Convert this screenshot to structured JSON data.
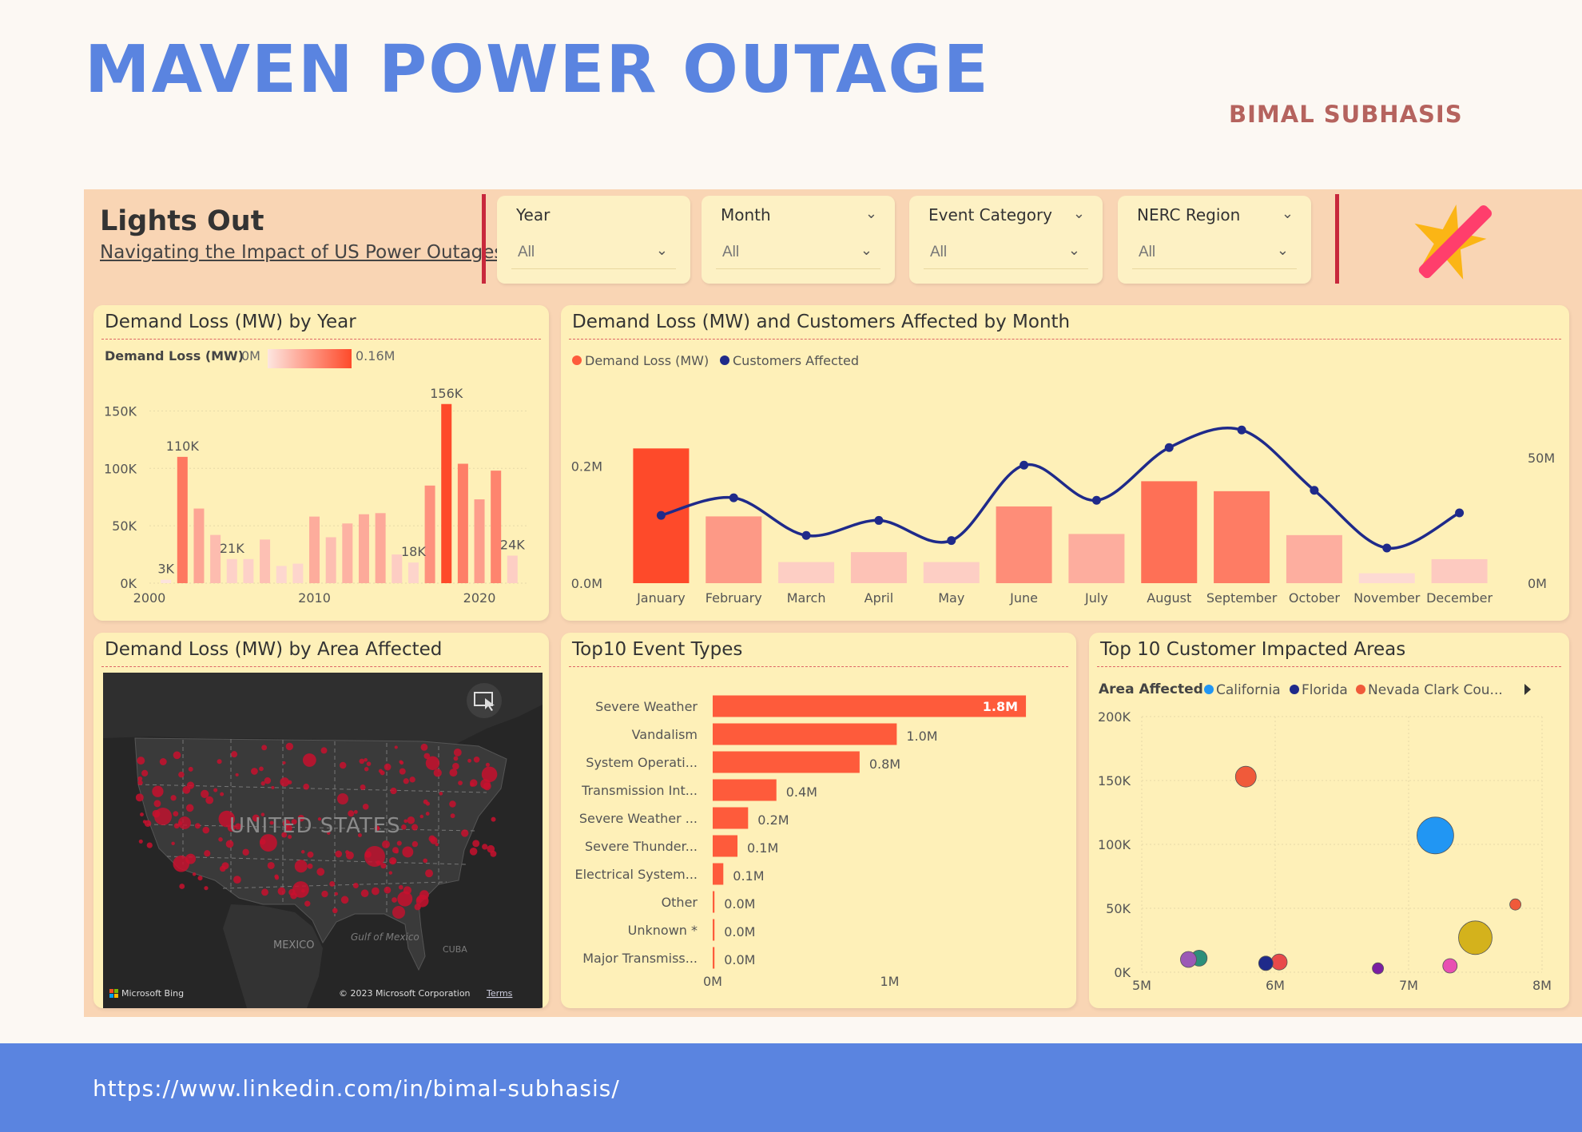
{
  "page": {
    "title": "MAVEN POWER OUTAGE",
    "author": "BIMAL SUBHASIS",
    "footer_link": "https://www.linkedin.com/in/bimal-subhasis/"
  },
  "header": {
    "title": "Lights Out",
    "subtitle": "Navigating the Impact of US Power Outages"
  },
  "slicers": [
    {
      "label": "Year",
      "value": "All"
    },
    {
      "label": "Month",
      "value": "All"
    },
    {
      "label": "Event Category",
      "value": "All"
    },
    {
      "label": "NERC Region",
      "value": "All"
    }
  ],
  "colors": {
    "title_blue": "#5a84e0",
    "author_red": "#b5635e",
    "dash_bg": "#f9d5b4",
    "card_bg": "#fef0b8",
    "accent_red": "#fe5b3b",
    "line_navy": "#1f2a8a"
  },
  "chart_data": [
    {
      "id": "year",
      "type": "bar",
      "title": "Demand Loss (MW) by Year",
      "legend": {
        "label": "Demand Loss (MW)",
        "min_label": "0M",
        "max_label": "0.16M"
      },
      "x": [
        2000,
        2001,
        2002,
        2003,
        2004,
        2005,
        2006,
        2007,
        2008,
        2009,
        2010,
        2011,
        2012,
        2013,
        2014,
        2015,
        2016,
        2017,
        2018,
        2019,
        2020,
        2021,
        2022,
        2023
      ],
      "values": [
        0,
        3000,
        110000,
        65000,
        42000,
        21000,
        21000,
        38000,
        15000,
        17000,
        58000,
        40000,
        52000,
        60000,
        61000,
        25000,
        18000,
        85000,
        156000,
        104000,
        73000,
        98000,
        24000,
        0
      ],
      "ylim": [
        0,
        160000
      ],
      "yticks": [
        "0K",
        "50K",
        "100K",
        "150K"
      ],
      "xticks": [
        "2000",
        "2010",
        "2020"
      ],
      "data_labels": [
        {
          "year": 2001,
          "text": "3K"
        },
        {
          "year": 2002,
          "text": "110K"
        },
        {
          "year": 2005,
          "text": "21K"
        },
        {
          "year": 2016,
          "text": "18K"
        },
        {
          "year": 2018,
          "text": "156K"
        },
        {
          "year": 2022,
          "text": "24K"
        }
      ]
    },
    {
      "id": "month",
      "type": "bar",
      "title": "Demand Loss (MW) and Customers Affected by Month",
      "categories": [
        "January",
        "February",
        "March",
        "April",
        "May",
        "June",
        "July",
        "August",
        "September",
        "October",
        "November",
        "December"
      ],
      "series": [
        {
          "name": "Demand Loss (MW)",
          "type": "bar",
          "values": [
            230000,
            114000,
            36000,
            53000,
            36000,
            131000,
            84000,
            174000,
            157000,
            82000,
            17000,
            41000
          ]
        },
        {
          "name": "Customers Affected",
          "type": "line",
          "values": [
            27000000,
            34000000,
            19000000,
            25000000,
            17000000,
            47000000,
            33000000,
            54000000,
            61000000,
            37000000,
            14000000,
            28000000
          ]
        }
      ],
      "ylim_left": [
        0,
        300000
      ],
      "ylim_right": [
        0,
        70000000
      ],
      "yticks_left": [
        "0.0M",
        "0.2M"
      ],
      "yticks_right": [
        "0M",
        "50M"
      ]
    },
    {
      "id": "events",
      "type": "bar",
      "title": "Top10 Event Types",
      "categories": [
        "Severe Weather",
        "Vandalism",
        "System Operati...",
        "Transmission Int...",
        "Severe Weather ...",
        "Severe Thunder...",
        "Electrical System...",
        "Other",
        "Unknown *",
        "Major Transmiss..."
      ],
      "values": [
        1.77,
        1.04,
        0.83,
        0.36,
        0.2,
        0.14,
        0.06,
        0.01,
        0.01,
        0.01
      ],
      "labels": [
        "1.8M",
        "1.0M",
        "0.8M",
        "0.4M",
        "0.2M",
        "0.1M",
        "0.1M",
        "0.0M",
        "0.0M",
        "0.0M"
      ],
      "xlim": [
        0,
        2
      ],
      "xticks": [
        "0M",
        "1M"
      ]
    },
    {
      "id": "areas",
      "type": "scatter",
      "title": "Top 10 Customer Impacted Areas",
      "legend_title": "Area Affected",
      "legend": [
        {
          "name": "California",
          "color": "#2196f3"
        },
        {
          "name": "Florida",
          "color": "#1f2a8a"
        },
        {
          "name": "Nevada Clark Cou...",
          "color": "#f05a3a"
        }
      ],
      "xlim": [
        5000000,
        8000000
      ],
      "ylim": [
        0,
        200000
      ],
      "xticks": [
        "5M",
        "6M",
        "7M",
        "8M"
      ],
      "yticks": [
        "0K",
        "50K",
        "100K",
        "150K",
        "200K"
      ],
      "points": [
        {
          "x": 5780000,
          "y": 153000,
          "size": 13,
          "color": "#f05a3a"
        },
        {
          "x": 7200000,
          "y": 107000,
          "size": 23,
          "color": "#2196f3"
        },
        {
          "x": 7800000,
          "y": 53000,
          "size": 7,
          "color": "#f05a3a"
        },
        {
          "x": 7500000,
          "y": 27000,
          "size": 21,
          "color": "#d4b21c"
        },
        {
          "x": 5430000,
          "y": 11000,
          "size": 10,
          "color": "#2c8f7a"
        },
        {
          "x": 5350000,
          "y": 10000,
          "size": 10,
          "color": "#9b59b6"
        },
        {
          "x": 6030000,
          "y": 8000,
          "size": 10,
          "color": "#e84a4a"
        },
        {
          "x": 5930000,
          "y": 7000,
          "size": 9,
          "color": "#1f2a8a"
        },
        {
          "x": 6770000,
          "y": 3000,
          "size": 7,
          "color": "#7b1fa2"
        },
        {
          "x": 7310000,
          "y": 5000,
          "size": 9,
          "color": "#e84fb2"
        }
      ]
    }
  ],
  "map": {
    "title": "Demand Loss (MW) by Area Affected",
    "country_label": "UNITED STATES",
    "mexico_label": "MEXICO",
    "gulf_label": "Gulf of Mexico",
    "cuba_label": "CUBA",
    "bing_label": "Microsoft Bing",
    "copyright": "© 2023 Microsoft Corporation",
    "terms": "Terms"
  }
}
